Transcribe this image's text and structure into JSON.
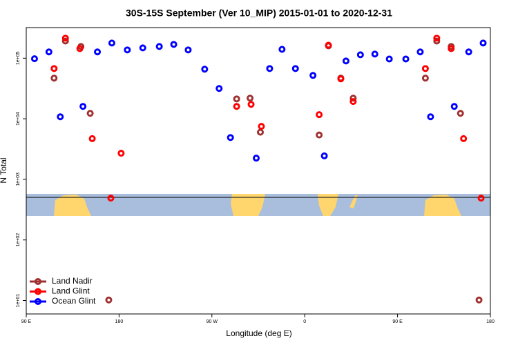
{
  "chart_data": {
    "type": "scatter",
    "title": "30S-15S September (Ver 10_MIP)   2015-01-01 to 2020-12-31",
    "x_label": "Longitude (deg E)",
    "y_label": "N Total",
    "xlim": [
      90,
      540
    ],
    "xticks": [
      {
        "value": 90,
        "label": "90 E"
      },
      {
        "value": 180,
        "label": "180"
      },
      {
        "value": 270,
        "label": "90 W"
      },
      {
        "value": 360,
        "label": "0"
      },
      {
        "value": 450,
        "label": "90 E"
      },
      {
        "value": 540,
        "label": "180"
      }
    ],
    "ylim": [
      6,
      320000
    ],
    "log_y": true,
    "yticks": [
      {
        "value": 10,
        "label": "1e+01"
      },
      {
        "value": 100,
        "label": "1e+02"
      },
      {
        "value": 1000,
        "label": "1e+03"
      },
      {
        "value": 10000,
        "label": "1e+04"
      },
      {
        "value": 100000,
        "label": "1e+05"
      }
    ],
    "legend": "bottomleft",
    "series": [
      {
        "name": "Land Nadir",
        "color": "#a03030",
        "x": [
          117,
          128,
          143,
          152,
          170,
          294,
          307,
          317,
          374,
          383,
          395,
          407,
          477,
          488,
          502,
          511,
          529
        ],
        "values": [
          46900,
          192000,
          156000,
          12300,
          10.2,
          21300,
          21900,
          6000,
          5400,
          160000,
          46900,
          21900,
          46900,
          192000,
          156000,
          12300,
          10.2
        ]
      },
      {
        "name": "Land Glint",
        "color": "#ff0000",
        "x": [
          117,
          128,
          142,
          154,
          172,
          182,
          294,
          308,
          318,
          374,
          383,
          395,
          407,
          477,
          488,
          502,
          514,
          531
        ],
        "values": [
          67500,
          214000,
          144000,
          4700,
          490,
          2700,
          16000,
          17300,
          7500,
          11700,
          164000,
          45600,
          19300,
          67500,
          214000,
          144000,
          4700,
          490
        ]
      },
      {
        "name": "Ocean Glint",
        "color": "#0000ff",
        "x": [
          98,
          112,
          123,
          145,
          159,
          173,
          188,
          203,
          219,
          233,
          247,
          263,
          277,
          288,
          313,
          326,
          338,
          351,
          368,
          379,
          400,
          414,
          428,
          442,
          458,
          472,
          482,
          505,
          519,
          533
        ],
        "values": [
          98000,
          127000,
          10800,
          16000,
          127000,
          178000,
          137000,
          148000,
          156000,
          169000,
          137000,
          65800,
          31600,
          4900,
          2240,
          67500,
          140000,
          67500,
          52000,
          2440,
          90000,
          114000,
          117000,
          97000,
          97000,
          127000,
          10800,
          16000,
          127000,
          178000
        ]
      }
    ]
  }
}
